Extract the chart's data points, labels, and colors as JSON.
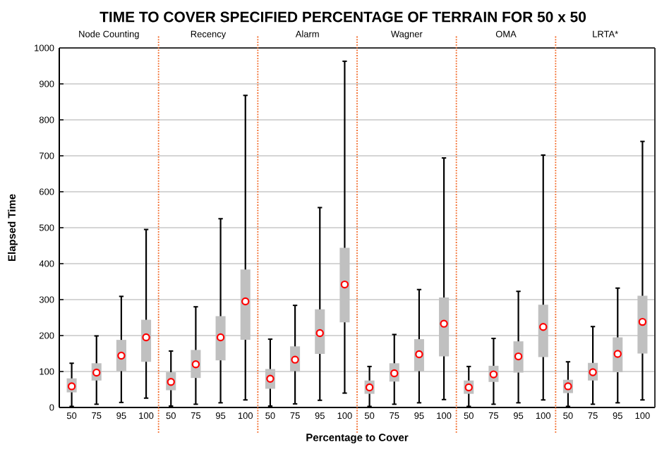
{
  "chart_data": [
    {
      "type": "box",
      "title": "TIME TO COVER SPECIFIED PERCENTAGE OF TERRAIN FOR 50 x 50",
      "subtitle": "Node Counting",
      "ylabel": "Elapsed Time",
      "categories": [
        "50",
        "75",
        "95",
        "100"
      ],
      "series": [
        {
          "color": "#c0c0c0",
          "boxes": [
            {
              "low": 3,
              "q1": 42,
              "median": 59,
              "q3": 81,
              "high": 123
            },
            {
              "low": 9,
              "q1": 75,
              "median": 97,
              "q3": 123,
              "high": 199
            },
            {
              "low": 14,
              "q1": 101,
              "median": 144,
              "q3": 188,
              "high": 309
            },
            {
              "low": 26,
              "q1": 127,
              "median": 195,
              "q3": 244,
              "high": 495
            }
          ]
        }
      ],
      "ylim": [
        0,
        1000
      ],
      "yticks": [
        0,
        100,
        200,
        300,
        400,
        500,
        600,
        700,
        800,
        900,
        1000
      ],
      "grid": "y",
      "marker": "circle"
    },
    {
      "type": "box",
      "subtitle": "Recency",
      "categories": [
        "50",
        "75",
        "95",
        "100"
      ],
      "series": [
        {
          "color": "#c0c0c0",
          "boxes": [
            {
              "low": 4,
              "q1": 48,
              "median": 71,
              "q3": 98,
              "high": 157
            },
            {
              "low": 9,
              "q1": 82,
              "median": 120,
              "q3": 160,
              "high": 280
            },
            {
              "low": 13,
              "q1": 131,
              "median": 195,
              "q3": 254,
              "high": 525
            },
            {
              "low": 21,
              "q1": 188,
              "median": 295,
              "q3": 384,
              "high": 868
            }
          ]
        }
      ],
      "ylim": [
        0,
        1000
      ],
      "yticks": [
        0,
        100,
        200,
        300,
        400,
        500,
        600,
        700,
        800,
        900,
        1000
      ],
      "grid": "y",
      "marker": "circle",
      "tick_labels": "x"
    },
    {
      "type": "box",
      "subtitle": "Alarm",
      "categories": [
        "50",
        "75",
        "95",
        "100"
      ],
      "series": [
        {
          "color": "#c0c0c0",
          "boxes": [
            {
              "low": 4,
              "q1": 52,
              "median": 80,
              "q3": 107,
              "high": 190
            },
            {
              "low": 10,
              "q1": 101,
              "median": 133,
              "q3": 170,
              "high": 284
            },
            {
              "low": 20,
              "q1": 149,
              "median": 207,
              "q3": 273,
              "high": 556
            },
            {
              "low": 40,
              "q1": 237,
              "median": 342,
              "q3": 444,
              "high": 963
            }
          ]
        }
      ],
      "ylim": [
        0,
        1000
      ],
      "yticks": [
        0,
        100,
        200,
        300,
        400,
        500,
        600,
        700,
        800,
        900,
        1000
      ],
      "grid": "y",
      "marker": "circle",
      "tick_labels": "x"
    },
    {
      "type": "box",
      "subtitle": "Wagner",
      "xlabel": "Percentage to Cover",
      "categories": [
        "50",
        "75",
        "95",
        "100"
      ],
      "series": [
        {
          "color": "#c0c0c0",
          "boxes": [
            {
              "low": 3,
              "q1": 38,
              "median": 56,
              "q3": 75,
              "high": 114
            },
            {
              "low": 9,
              "q1": 72,
              "median": 95,
              "q3": 123,
              "high": 203
            },
            {
              "low": 13,
              "q1": 101,
              "median": 148,
              "q3": 190,
              "high": 328
            },
            {
              "low": 22,
              "q1": 142,
              "median": 233,
              "q3": 306,
              "high": 694
            }
          ]
        }
      ],
      "ylim": [
        0,
        1000
      ],
      "yticks": [
        0,
        100,
        200,
        300,
        400,
        500,
        600,
        700,
        800,
        900,
        1000
      ],
      "grid": "y",
      "marker": "circle",
      "tick_labels": "x"
    },
    {
      "type": "box",
      "subtitle": "OMA",
      "categories": [
        "50",
        "75",
        "95",
        "100"
      ],
      "series": [
        {
          "color": "#c0c0c0",
          "boxes": [
            {
              "low": 3,
              "q1": 38,
              "median": 56,
              "q3": 75,
              "high": 114
            },
            {
              "low": 9,
              "q1": 71,
              "median": 92,
              "q3": 116,
              "high": 192
            },
            {
              "low": 13,
              "q1": 97,
              "median": 142,
              "q3": 184,
              "high": 323
            },
            {
              "low": 21,
              "q1": 140,
              "median": 224,
              "q3": 286,
              "high": 702
            }
          ]
        }
      ],
      "ylim": [
        0,
        1000
      ],
      "yticks": [
        0,
        100,
        200,
        300,
        400,
        500,
        600,
        700,
        800,
        900,
        1000
      ],
      "grid": "y",
      "marker": "circle",
      "tick_labels": "x"
    },
    {
      "type": "box",
      "subtitle": "LRTA*",
      "categories": [
        "50",
        "75",
        "95",
        "100"
      ],
      "series": [
        {
          "color": "#c0c0c0",
          "boxes": [
            {
              "low": 3,
              "q1": 40,
              "median": 59,
              "q3": 77,
              "high": 127
            },
            {
              "low": 9,
              "q1": 75,
              "median": 98,
              "q3": 124,
              "high": 225
            },
            {
              "low": 13,
              "q1": 98,
              "median": 149,
              "q3": 195,
              "high": 332
            },
            {
              "low": 21,
              "q1": 150,
              "median": 238,
              "q3": 311,
              "high": 740
            }
          ]
        }
      ],
      "ylim": [
        0,
        1000
      ],
      "yticks": [
        0,
        100,
        200,
        300,
        400,
        500,
        600,
        700,
        800,
        900,
        1000
      ],
      "grid": "y",
      "marker": "circle",
      "tick_labels": "x"
    }
  ]
}
